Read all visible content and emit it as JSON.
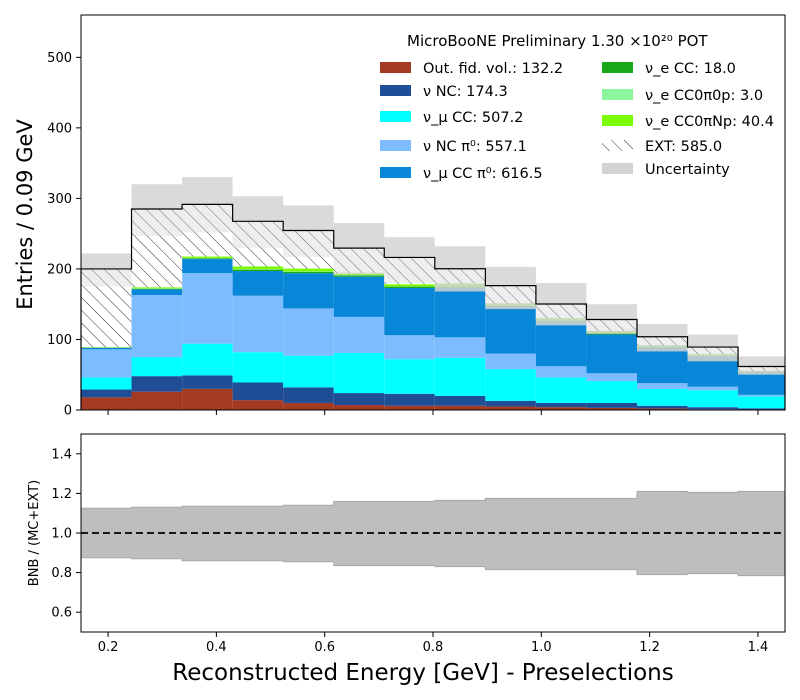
{
  "chart_data": [
    {
      "type": "bar",
      "stacked": true,
      "title": "",
      "annotation": "MicroBooNE Preliminary 1.30 ×10²⁰ POT",
      "xlabel": "",
      "ylabel": "Entries / 0.09 GeV",
      "xlim": [
        0.15,
        1.45
      ],
      "ylim": [
        0,
        560
      ],
      "bin_edges": [
        0.15,
        0.2433,
        0.3367,
        0.43,
        0.5233,
        0.6167,
        0.71,
        0.8033,
        0.8967,
        0.99,
        1.0833,
        1.1767,
        1.27,
        1.3633,
        1.45
      ],
      "xticks": [
        0.2,
        0.4,
        0.6,
        0.8,
        1.0,
        1.2,
        1.4
      ],
      "xtick_labels": [
        "0.2",
        "0.4",
        "0.6",
        "0.8",
        "1.0",
        "1.2",
        "1.4"
      ],
      "yticks": [
        0,
        100,
        200,
        300,
        400,
        500
      ],
      "ytick_labels": [
        "0",
        "100",
        "200",
        "300",
        "400",
        "500"
      ],
      "grid": false,
      "legend_position": "top-right",
      "series": [
        {
          "name": "Out. fid. vol.: 132.2",
          "color": "#a53a24",
          "values": [
            18,
            26,
            30,
            14,
            10,
            7,
            6,
            6,
            5,
            4,
            3,
            2,
            1,
            0.5
          ]
        },
        {
          "name": "ν NC: 174.3",
          "color": "#1f4e96",
          "values": [
            11,
            22,
            19,
            25,
            22,
            17,
            17,
            14,
            8,
            6,
            7,
            4,
            3,
            2
          ]
        },
        {
          "name": "ν_μ CC: 507.2",
          "color": "#00ffff",
          "values": [
            17,
            27,
            45,
            43,
            45,
            57,
            49,
            54,
            45,
            36,
            31,
            24,
            24,
            17
          ]
        },
        {
          "name": "ν NC π⁰: 557.1",
          "color": "#7dbcff",
          "values": [
            40,
            88,
            100,
            80,
            67,
            51,
            34,
            29,
            22,
            16,
            11,
            8,
            5,
            2
          ]
        },
        {
          "name": "ν_μ CC π⁰: 616.5",
          "color": "#0887d8",
          "values": [
            2,
            8,
            20,
            35,
            50,
            57,
            67,
            70,
            66,
            63,
            55,
            50,
            43,
            32
          ]
        },
        {
          "name": "ν_e CC: 18.0",
          "color": "#18a91b",
          "values": [
            0.5,
            1,
            1,
            2,
            2,
            2,
            2,
            2,
            2,
            2,
            2,
            1.5,
            1,
            1
          ]
        },
        {
          "name": "ν_e CC0π0p: 3.0",
          "color": "#8df59b",
          "values": [
            0,
            0.5,
            0.5,
            0.5,
            0.5,
            0.5,
            0.3,
            0.3,
            0.3,
            0.3,
            0.3,
            0.3,
            0.2,
            0.2
          ]
        },
        {
          "name": "ν_e CC0πNp: 40.4",
          "color": "#7cfc00",
          "values": [
            0.5,
            1.5,
            2,
            4,
            4,
            3,
            3,
            4,
            3,
            3,
            3,
            2,
            2,
            1
          ]
        },
        {
          "name": "EXT: 585.0",
          "color": "#ffffff",
          "pattern": "hatch",
          "values": [
            111,
            111,
            74,
            64,
            54,
            35,
            38,
            21,
            25,
            20,
            16,
            12,
            10,
            6
          ]
        }
      ],
      "uncertainty": {
        "name": "Uncertainty",
        "color": "#d3d3d3",
        "upper": [
          222,
          320,
          330,
          303,
          290,
          265,
          245,
          232,
          203,
          180,
          150,
          122,
          107,
          76
        ],
        "lower": [
          175,
          247,
          252,
          230,
          217,
          192,
          180,
          168,
          143,
          120,
          108,
          83,
          69,
          50
        ]
      }
    },
    {
      "type": "area",
      "title": "",
      "xlabel": "Reconstructed Energy [GeV] - Preselections",
      "ylabel": "BNB / (MC+EXT)",
      "xlim": [
        0.15,
        1.45
      ],
      "ylim": [
        0.5,
        1.5
      ],
      "yticks": [
        0.6,
        0.8,
        1.0,
        1.2,
        1.4
      ],
      "ytick_labels": [
        "0.6",
        "0.8",
        "1.0",
        "1.2",
        "1.4"
      ],
      "xticks": [
        0.2,
        0.4,
        0.6,
        0.8,
        1.0,
        1.2,
        1.4
      ],
      "xtick_labels": [
        "0.2",
        "0.4",
        "0.6",
        "0.8",
        "1.0",
        "1.2",
        "1.4"
      ],
      "reference_line": 1.0,
      "band_color": "#bebebe",
      "band_upper": [
        1.125,
        1.13,
        1.135,
        1.135,
        1.14,
        1.16,
        1.16,
        1.165,
        1.175,
        1.175,
        1.175,
        1.21,
        1.205,
        1.21
      ],
      "band_lower": [
        0.875,
        0.87,
        0.86,
        0.86,
        0.855,
        0.835,
        0.835,
        0.83,
        0.815,
        0.815,
        0.815,
        0.79,
        0.795,
        0.785
      ]
    }
  ]
}
